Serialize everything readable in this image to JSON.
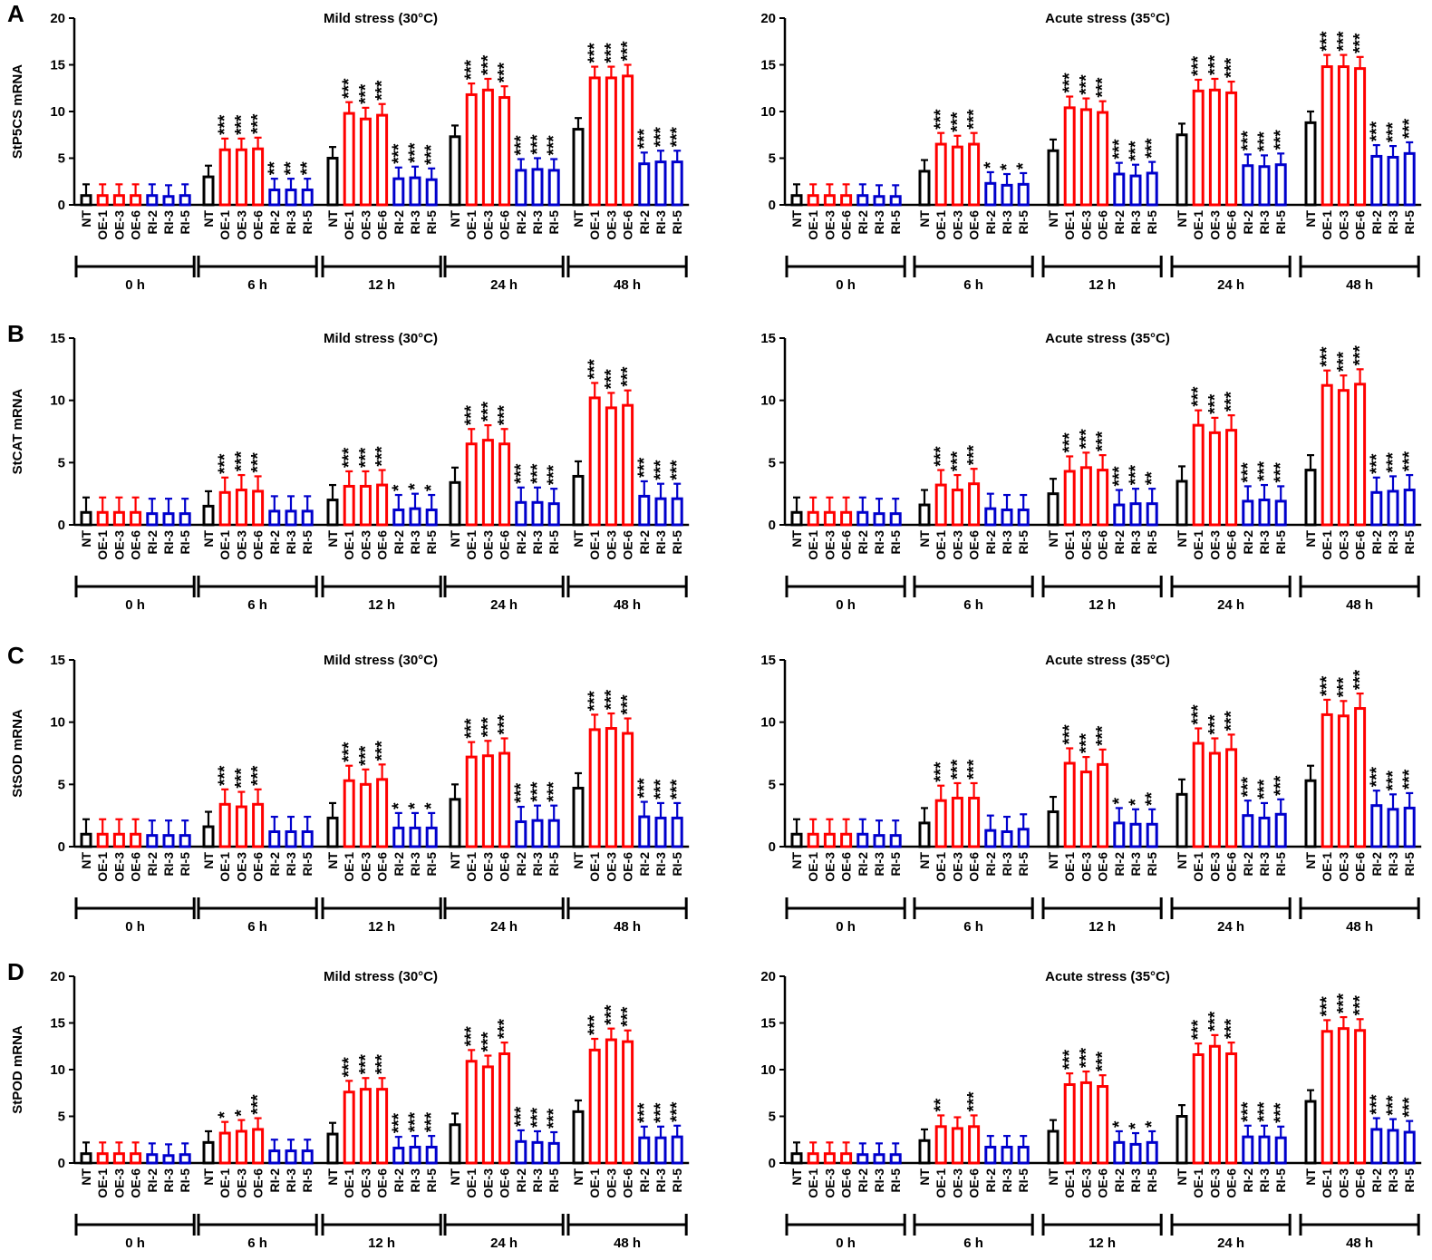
{
  "figure": {
    "group_labels": [
      "NT",
      "OE-1",
      "OE-3",
      "OE-6",
      "RI-2",
      "RI-3",
      "RI-5"
    ],
    "time_points": [
      "0 h",
      "6 h",
      "12 h",
      "24 h",
      "48 h"
    ],
    "colors": {
      "nt": "#000000",
      "oe": "#ff0000",
      "ri": "#0000cc"
    }
  },
  "panels": [
    {
      "letter": "A"
    },
    {
      "letter": "B"
    },
    {
      "letter": "C"
    },
    {
      "letter": "D"
    }
  ],
  "chart_data": [
    {
      "type": "bar",
      "title": "Mild stress (30°C)",
      "ylabel": "StP5CS mRNA",
      "ylim": [
        0,
        20
      ],
      "yticks": [
        0,
        5,
        10,
        15,
        20
      ],
      "categories": [
        "0 h",
        "6 h",
        "12 h",
        "24 h",
        "48 h"
      ],
      "series": [
        {
          "name": "NT",
          "values": [
            1.0,
            3.0,
            5.0,
            7.3,
            8.1
          ]
        },
        {
          "name": "OE-1",
          "values": [
            1.0,
            5.9,
            9.8,
            11.8,
            13.6
          ]
        },
        {
          "name": "OE-3",
          "values": [
            1.0,
            5.9,
            9.2,
            12.3,
            13.6
          ]
        },
        {
          "name": "OE-6",
          "values": [
            1.0,
            6.0,
            9.6,
            11.5,
            13.8
          ]
        },
        {
          "name": "RI-2",
          "values": [
            1.0,
            1.6,
            2.8,
            3.7,
            4.4
          ]
        },
        {
          "name": "RI-3",
          "values": [
            0.9,
            1.6,
            2.9,
            3.8,
            4.6
          ]
        },
        {
          "name": "RI-5",
          "values": [
            1.0,
            1.6,
            2.7,
            3.7,
            4.6
          ]
        }
      ],
      "annotations": [
        [
          "",
          "",
          "",
          "",
          "",
          "",
          ""
        ],
        [
          "",
          "***",
          "***",
          "***",
          "**",
          "**",
          "**"
        ],
        [
          "",
          "***",
          "***",
          "***",
          "***",
          "***",
          "***"
        ],
        [
          "",
          "***",
          "***",
          "***",
          "***",
          "***",
          "***"
        ],
        [
          "",
          "***",
          "***",
          "***",
          "***",
          "***",
          "***"
        ]
      ]
    },
    {
      "type": "bar",
      "title": "Acute stress (35°C)",
      "ylabel": "",
      "ylim": [
        0,
        20
      ],
      "yticks": [
        0,
        5,
        10,
        15,
        20
      ],
      "categories": [
        "0 h",
        "6 h",
        "12 h",
        "24 h",
        "48 h"
      ],
      "series": [
        {
          "name": "NT",
          "values": [
            1.0,
            3.6,
            5.8,
            7.5,
            8.8
          ]
        },
        {
          "name": "OE-1",
          "values": [
            1.0,
            6.5,
            10.4,
            12.2,
            14.8
          ]
        },
        {
          "name": "OE-3",
          "values": [
            1.0,
            6.2,
            10.2,
            12.3,
            14.8
          ]
        },
        {
          "name": "OE-6",
          "values": [
            1.0,
            6.5,
            9.9,
            12.0,
            14.6
          ]
        },
        {
          "name": "RI-2",
          "values": [
            1.0,
            2.3,
            3.3,
            4.2,
            5.2
          ]
        },
        {
          "name": "RI-3",
          "values": [
            0.9,
            2.1,
            3.1,
            4.1,
            5.1
          ]
        },
        {
          "name": "RI-5",
          "values": [
            0.9,
            2.2,
            3.4,
            4.3,
            5.5
          ]
        }
      ],
      "annotations": [
        [
          "",
          "",
          "",
          "",
          "",
          "",
          ""
        ],
        [
          "",
          "***",
          "***",
          "***",
          "*",
          "*",
          "*"
        ],
        [
          "",
          "***",
          "***",
          "***",
          "***",
          "***",
          "***"
        ],
        [
          "",
          "***",
          "***",
          "***",
          "***",
          "***",
          "***"
        ],
        [
          "",
          "***",
          "***",
          "***",
          "***",
          "***",
          "***"
        ]
      ]
    },
    {
      "type": "bar",
      "title": "Mild stress (30°C)",
      "ylabel": "StCAT mRNA",
      "ylim": [
        0,
        15
      ],
      "yticks": [
        0,
        5,
        10,
        15
      ],
      "categories": [
        "0 h",
        "6 h",
        "12 h",
        "24 h",
        "48 h"
      ],
      "series": [
        {
          "name": "NT",
          "values": [
            1.0,
            1.5,
            2.0,
            3.4,
            3.9
          ]
        },
        {
          "name": "OE-1",
          "values": [
            1.0,
            2.6,
            3.1,
            6.5,
            10.2
          ]
        },
        {
          "name": "OE-3",
          "values": [
            1.0,
            2.8,
            3.1,
            6.8,
            9.4
          ]
        },
        {
          "name": "OE-6",
          "values": [
            1.0,
            2.7,
            3.2,
            6.5,
            9.6
          ]
        },
        {
          "name": "RI-2",
          "values": [
            0.9,
            1.1,
            1.2,
            1.8,
            2.3
          ]
        },
        {
          "name": "RI-3",
          "values": [
            0.9,
            1.1,
            1.3,
            1.8,
            2.1
          ]
        },
        {
          "name": "RI-5",
          "values": [
            0.9,
            1.1,
            1.2,
            1.7,
            2.1
          ]
        }
      ],
      "annotations": [
        [
          "",
          "",
          "",
          "",
          "",
          "",
          ""
        ],
        [
          "",
          "***",
          "***",
          "***",
          "",
          "",
          ""
        ],
        [
          "",
          "***",
          "***",
          "***",
          "*",
          "*",
          "*"
        ],
        [
          "",
          "***",
          "***",
          "***",
          "***",
          "***",
          "***"
        ],
        [
          "",
          "***",
          "***",
          "***",
          "***",
          "***",
          "***"
        ]
      ]
    },
    {
      "type": "bar",
      "title": "Acute stress (35°C)",
      "ylabel": "",
      "ylim": [
        0,
        15
      ],
      "yticks": [
        0,
        5,
        10,
        15
      ],
      "categories": [
        "0 h",
        "6 h",
        "12 h",
        "24 h",
        "48 h"
      ],
      "series": [
        {
          "name": "NT",
          "values": [
            1.0,
            1.6,
            2.5,
            3.5,
            4.4
          ]
        },
        {
          "name": "OE-1",
          "values": [
            1.0,
            3.2,
            4.3,
            8.0,
            11.2
          ]
        },
        {
          "name": "OE-3",
          "values": [
            1.0,
            2.8,
            4.6,
            7.4,
            10.8
          ]
        },
        {
          "name": "OE-6",
          "values": [
            1.0,
            3.3,
            4.4,
            7.6,
            11.3
          ]
        },
        {
          "name": "RI-2",
          "values": [
            1.0,
            1.3,
            1.6,
            1.9,
            2.6
          ]
        },
        {
          "name": "RI-3",
          "values": [
            0.9,
            1.2,
            1.7,
            2.0,
            2.7
          ]
        },
        {
          "name": "RI-5",
          "values": [
            0.9,
            1.2,
            1.7,
            1.9,
            2.8
          ]
        }
      ],
      "annotations": [
        [
          "",
          "",
          "",
          "",
          "",
          "",
          ""
        ],
        [
          "",
          "***",
          "***",
          "***",
          "",
          "",
          ""
        ],
        [
          "",
          "***",
          "***",
          "***",
          "***",
          "***",
          "**"
        ],
        [
          "",
          "***",
          "***",
          "***",
          "***",
          "***",
          "***"
        ],
        [
          "",
          "***",
          "***",
          "***",
          "***",
          "***",
          "***"
        ]
      ]
    },
    {
      "type": "bar",
      "title": "Mild stress (30°C)",
      "ylabel": "StSOD mRNA",
      "ylim": [
        0,
        15
      ],
      "yticks": [
        0,
        5,
        10,
        15
      ],
      "categories": [
        "0 h",
        "6 h",
        "12 h",
        "24 h",
        "48 h"
      ],
      "series": [
        {
          "name": "NT",
          "values": [
            1.0,
            1.6,
            2.3,
            3.8,
            4.7
          ]
        },
        {
          "name": "OE-1",
          "values": [
            1.0,
            3.4,
            5.3,
            7.2,
            9.4
          ]
        },
        {
          "name": "OE-3",
          "values": [
            1.0,
            3.2,
            5.0,
            7.3,
            9.5
          ]
        },
        {
          "name": "OE-6",
          "values": [
            1.0,
            3.4,
            5.4,
            7.5,
            9.1
          ]
        },
        {
          "name": "RI-2",
          "values": [
            0.9,
            1.2,
            1.5,
            2.0,
            2.4
          ]
        },
        {
          "name": "RI-3",
          "values": [
            0.9,
            1.2,
            1.5,
            2.1,
            2.3
          ]
        },
        {
          "name": "RI-5",
          "values": [
            0.9,
            1.2,
            1.5,
            2.1,
            2.3
          ]
        }
      ],
      "annotations": [
        [
          "",
          "",
          "",
          "",
          "",
          "",
          ""
        ],
        [
          "",
          "***",
          "***",
          "***",
          "",
          "",
          ""
        ],
        [
          "",
          "***",
          "***",
          "***",
          "*",
          "*",
          "*"
        ],
        [
          "",
          "***",
          "***",
          "***",
          "***",
          "***",
          "***"
        ],
        [
          "",
          "***",
          "***",
          "***",
          "***",
          "***",
          "***"
        ]
      ]
    },
    {
      "type": "bar",
      "title": "Acute stress (35°C)",
      "ylabel": "",
      "ylim": [
        0,
        15
      ],
      "yticks": [
        0,
        5,
        10,
        15
      ],
      "categories": [
        "0 h",
        "6 h",
        "12 h",
        "24 h",
        "48 h"
      ],
      "series": [
        {
          "name": "NT",
          "values": [
            1.0,
            1.9,
            2.8,
            4.2,
            5.3
          ]
        },
        {
          "name": "OE-1",
          "values": [
            1.0,
            3.7,
            6.7,
            8.3,
            10.6
          ]
        },
        {
          "name": "OE-3",
          "values": [
            1.0,
            3.9,
            6.0,
            7.5,
            10.5
          ]
        },
        {
          "name": "OE-6",
          "values": [
            1.0,
            3.9,
            6.6,
            7.8,
            11.1
          ]
        },
        {
          "name": "RI-2",
          "values": [
            1.0,
            1.3,
            1.9,
            2.5,
            3.3
          ]
        },
        {
          "name": "RI-3",
          "values": [
            0.9,
            1.2,
            1.8,
            2.3,
            3.0
          ]
        },
        {
          "name": "RI-5",
          "values": [
            0.9,
            1.4,
            1.8,
            2.6,
            3.1
          ]
        }
      ],
      "annotations": [
        [
          "",
          "",
          "",
          "",
          "",
          "",
          ""
        ],
        [
          "",
          "***",
          "***",
          "***",
          "",
          "",
          ""
        ],
        [
          "",
          "***",
          "***",
          "***",
          "*",
          "*",
          "**"
        ],
        [
          "",
          "***",
          "***",
          "***",
          "***",
          "***",
          "***"
        ],
        [
          "",
          "***",
          "***",
          "***",
          "***",
          "***",
          "***"
        ]
      ]
    },
    {
      "type": "bar",
      "title": "Mild stress (30°C)",
      "ylabel": "StPOD mRNA",
      "ylim": [
        0,
        20
      ],
      "yticks": [
        0,
        5,
        10,
        15,
        20
      ],
      "categories": [
        "0 h",
        "6 h",
        "12 h",
        "24 h",
        "48 h"
      ],
      "series": [
        {
          "name": "NT",
          "values": [
            1.0,
            2.2,
            3.1,
            4.1,
            5.5
          ]
        },
        {
          "name": "OE-1",
          "values": [
            1.0,
            3.2,
            7.6,
            10.9,
            12.1
          ]
        },
        {
          "name": "OE-3",
          "values": [
            1.0,
            3.4,
            7.9,
            10.3,
            13.2
          ]
        },
        {
          "name": "OE-6",
          "values": [
            1.0,
            3.6,
            7.9,
            11.7,
            13.0
          ]
        },
        {
          "name": "RI-2",
          "values": [
            0.9,
            1.3,
            1.6,
            2.3,
            2.7
          ]
        },
        {
          "name": "RI-3",
          "values": [
            0.8,
            1.3,
            1.7,
            2.2,
            2.7
          ]
        },
        {
          "name": "RI-5",
          "values": [
            0.9,
            1.3,
            1.7,
            2.1,
            2.8
          ]
        }
      ],
      "annotations": [
        [
          "",
          "",
          "",
          "",
          "",
          "",
          ""
        ],
        [
          "",
          "*",
          "*",
          "***",
          "",
          "",
          ""
        ],
        [
          "",
          "***",
          "***",
          "***",
          "***",
          "***",
          "***"
        ],
        [
          "",
          "***",
          "***",
          "***",
          "***",
          "***",
          "***"
        ],
        [
          "",
          "***",
          "***",
          "***",
          "***",
          "***",
          "***"
        ]
      ]
    },
    {
      "type": "bar",
      "title": "Acute stress (35°C)",
      "ylabel": "",
      "ylim": [
        0,
        20
      ],
      "yticks": [
        0,
        5,
        10,
        15,
        20
      ],
      "categories": [
        "0 h",
        "6 h",
        "12 h",
        "24 h",
        "48 h"
      ],
      "series": [
        {
          "name": "NT",
          "values": [
            1.0,
            2.4,
            3.4,
            5.0,
            6.6
          ]
        },
        {
          "name": "OE-1",
          "values": [
            1.0,
            3.9,
            8.4,
            11.6,
            14.1
          ]
        },
        {
          "name": "OE-3",
          "values": [
            1.0,
            3.7,
            8.6,
            12.5,
            14.4
          ]
        },
        {
          "name": "OE-6",
          "values": [
            1.0,
            3.9,
            8.2,
            11.7,
            14.2
          ]
        },
        {
          "name": "RI-2",
          "values": [
            0.9,
            1.7,
            2.2,
            2.8,
            3.6
          ]
        },
        {
          "name": "RI-3",
          "values": [
            0.9,
            1.7,
            2.0,
            2.8,
            3.5
          ]
        },
        {
          "name": "RI-5",
          "values": [
            0.9,
            1.7,
            2.2,
            2.7,
            3.3
          ]
        }
      ],
      "annotations": [
        [
          "",
          "",
          "",
          "",
          "",
          "",
          ""
        ],
        [
          "",
          "**",
          "",
          "***",
          "",
          "",
          ""
        ],
        [
          "",
          "***",
          "***",
          "***",
          "*",
          "*",
          "*"
        ],
        [
          "",
          "***",
          "***",
          "***",
          "***",
          "***",
          "***"
        ],
        [
          "",
          "***",
          "***",
          "***",
          "***",
          "***",
          "***"
        ]
      ]
    }
  ]
}
